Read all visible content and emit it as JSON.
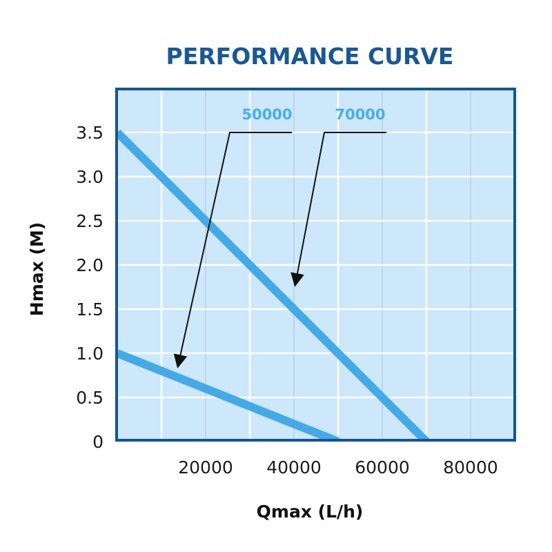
{
  "chart_data": {
    "type": "line",
    "title": "PERFORMANCE CURVE",
    "xlabel": "Qmax (L/h)",
    "ylabel": "Hmax (M)",
    "xlim": [
      0,
      90000
    ],
    "ylim": [
      0,
      3.9
    ],
    "x_ticks": [
      20000,
      40000,
      60000,
      80000
    ],
    "x_tick_labels": [
      "20000",
      "40000",
      "60000",
      "80000"
    ],
    "y_ticks": [
      0,
      0.5,
      1.0,
      1.5,
      2.0,
      2.5,
      3.0,
      3.5
    ],
    "y_tick_labels": [
      "0",
      "0.5",
      "1.0",
      "1.5",
      "2.0",
      "2.5",
      "3.0",
      "3.5"
    ],
    "grid": true,
    "series": [
      {
        "name": "50000",
        "x": [
          0,
          20000,
          40000,
          50000
        ],
        "y": [
          1.0,
          0.6,
          0.2,
          0.0
        ],
        "annotation_label": "50000"
      },
      {
        "name": "70000",
        "x": [
          0,
          40000,
          70000
        ],
        "y": [
          3.5,
          1.5,
          0.0
        ],
        "annotation_label": "70000"
      }
    ],
    "colors": {
      "title": "#1a5893",
      "frame": "#15558f",
      "plot_bg": "#cde7fb",
      "curve": "#45a9e6",
      "series_label": "#4aaee6",
      "grid_major": "#ffffff",
      "grid_minor": "#b5c9dc",
      "arrow": "#111111"
    }
  }
}
